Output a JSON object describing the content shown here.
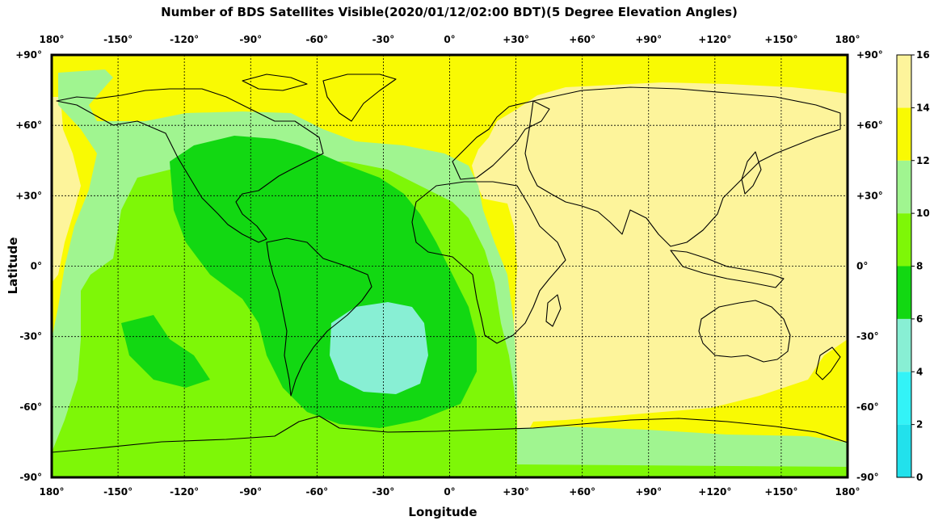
{
  "title": "Number of BDS Satellites Visible(2020/01/12/02:00 BDT)(5 Degree Elevation Angles)",
  "xlabel": "Longitude",
  "ylabel": "Latitude",
  "lon_ticks": [
    "180°",
    "-150°",
    "-120°",
    "-90°",
    "-60°",
    "-30°",
    "0°",
    "+30°",
    "+60°",
    "+90°",
    "+120°",
    "+150°",
    "180°"
  ],
  "lat_ticks_left": [
    "+90°",
    "+60°",
    "+30°",
    "0°",
    "-30°",
    "-60°",
    "-90°"
  ],
  "lat_ticks_right": [
    "+90°",
    "+60°",
    "+30°",
    "0°",
    "-30°",
    "-60°",
    "-90°"
  ],
  "colorbar": {
    "labels": [
      "16",
      "14",
      "12",
      "10",
      "8",
      "6",
      "4",
      "2",
      "0"
    ],
    "bins": [
      {
        "range": "0-2",
        "color": "#22e1ec"
      },
      {
        "range": "2-4",
        "color": "#33f3f7"
      },
      {
        "range": "4-6",
        "color": "#88efd4"
      },
      {
        "range": "6-8",
        "color": "#12d812"
      },
      {
        "range": "8-10",
        "color": "#7ef707"
      },
      {
        "range": "10-12",
        "color": "#a0f590"
      },
      {
        "range": "12-14",
        "color": "#f9fa03"
      },
      {
        "range": "14-16",
        "color": "#fdf49b"
      }
    ]
  },
  "chart_data": {
    "type": "heatmap",
    "title": "Number of BDS Satellites Visible(2020/01/12/02:00 BDT)(5 Degree Elevation Angles)",
    "xlabel": "Longitude",
    "ylabel": "Latitude",
    "xlim": [
      -180,
      180
    ],
    "ylim": [
      -90,
      90
    ],
    "colorbar_range": [
      0,
      16
    ],
    "grid": true,
    "regions": [
      {
        "area": "Asia, Australia, Indian Ocean, Eastern Africa, western Pacific (approx. +30° to 180° E)",
        "satellites": "14-16"
      },
      {
        "area": "Northern high latitudes and Arctic",
        "satellites": "12-14"
      },
      {
        "area": "Far eastern Pacific near 180° and mid latitudes",
        "satellites": "12-14"
      },
      {
        "area": "Southern Ocean band south of Australia/Africa (-60° to -70°)",
        "satellites": "12-14"
      },
      {
        "area": "Eastern Pacific / Americas margins",
        "satellites": "10-12"
      },
      {
        "area": "Central and South Pacific, Atlantic",
        "satellites": "8-10"
      },
      {
        "area": "North America, Caribbean, Central America, western South America",
        "satellites": "6-8"
      },
      {
        "area": "South Atlantic (around 30°W, 40°S)",
        "satellites": "4-6"
      },
      {
        "area": "Antarctica",
        "satellites": "8-12"
      }
    ]
  }
}
